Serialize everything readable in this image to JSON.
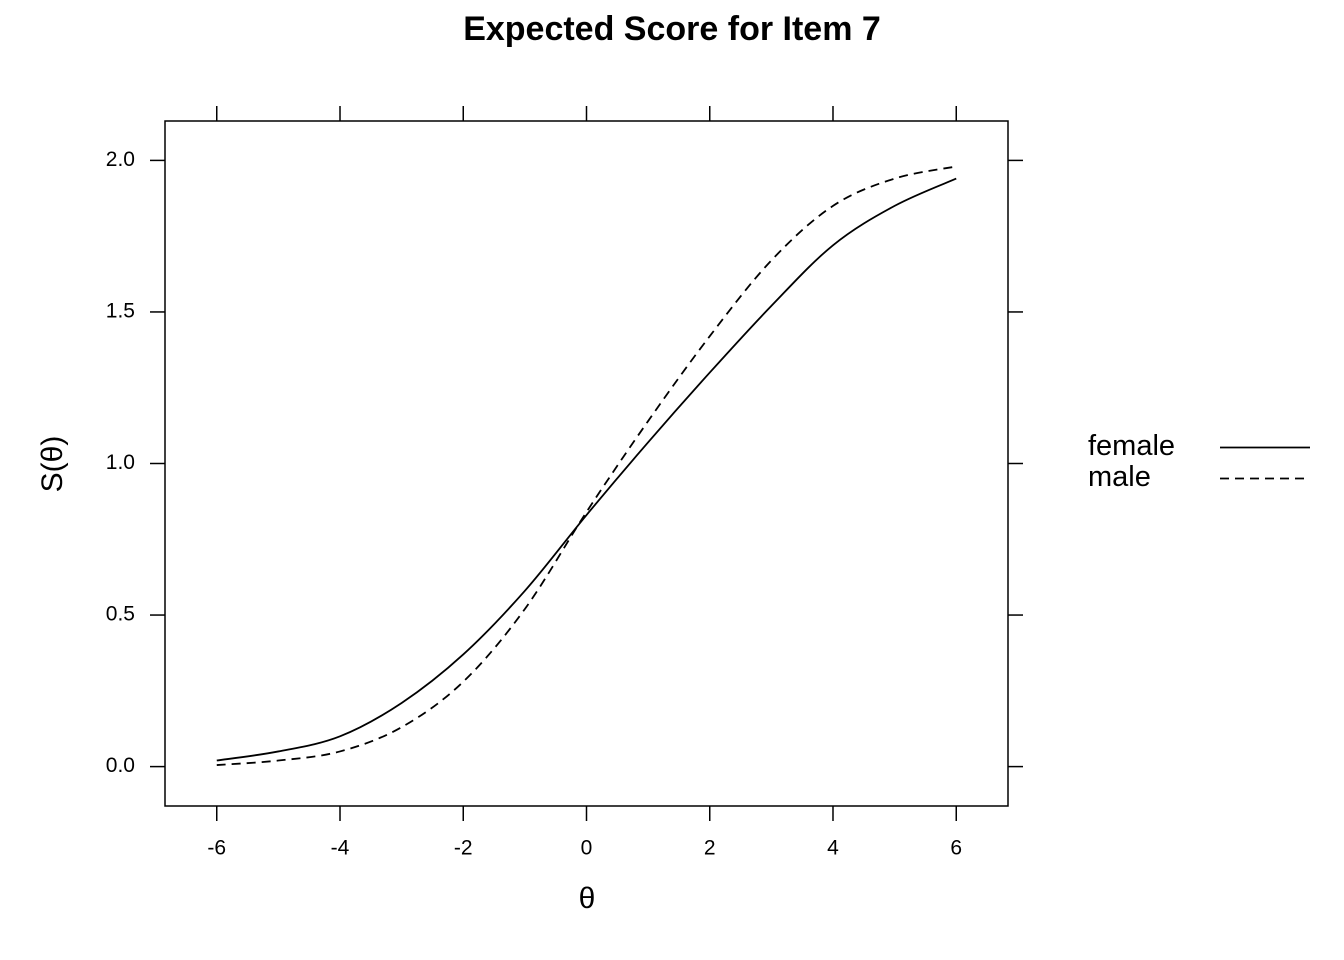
{
  "chart_data": {
    "type": "line",
    "title": "Expected Score for Item 7",
    "x_label": "θ",
    "y_label": "S(θ)",
    "x": [
      -6,
      -5,
      -4,
      -3,
      -2,
      -1,
      0,
      1,
      2,
      3,
      4,
      5,
      6
    ],
    "series": [
      {
        "name": "female",
        "color": "#000000",
        "dash": "solid",
        "values": [
          0.02,
          0.05,
          0.1,
          0.21,
          0.37,
          0.58,
          0.83,
          1.07,
          1.3,
          1.52,
          1.72,
          1.85,
          1.94
        ]
      },
      {
        "name": "male",
        "color": "#000000",
        "dash": "dashed",
        "values": [
          0.005,
          0.02,
          0.05,
          0.13,
          0.28,
          0.52,
          0.84,
          1.14,
          1.42,
          1.67,
          1.85,
          1.94,
          1.98
        ]
      }
    ],
    "xlim": [
      -6.84,
      6.84
    ],
    "ylim": [
      -0.13,
      2.13
    ],
    "xticks": [
      -6,
      -4,
      -2,
      0,
      2,
      4,
      6
    ],
    "yticks": [
      {
        "value": 0,
        "label": "0.0"
      },
      0.5,
      {
        "value": 1,
        "label": "1.0"
      },
      1.5,
      {
        "value": 2,
        "label": "2.0"
      }
    ],
    "legend": "right"
  }
}
